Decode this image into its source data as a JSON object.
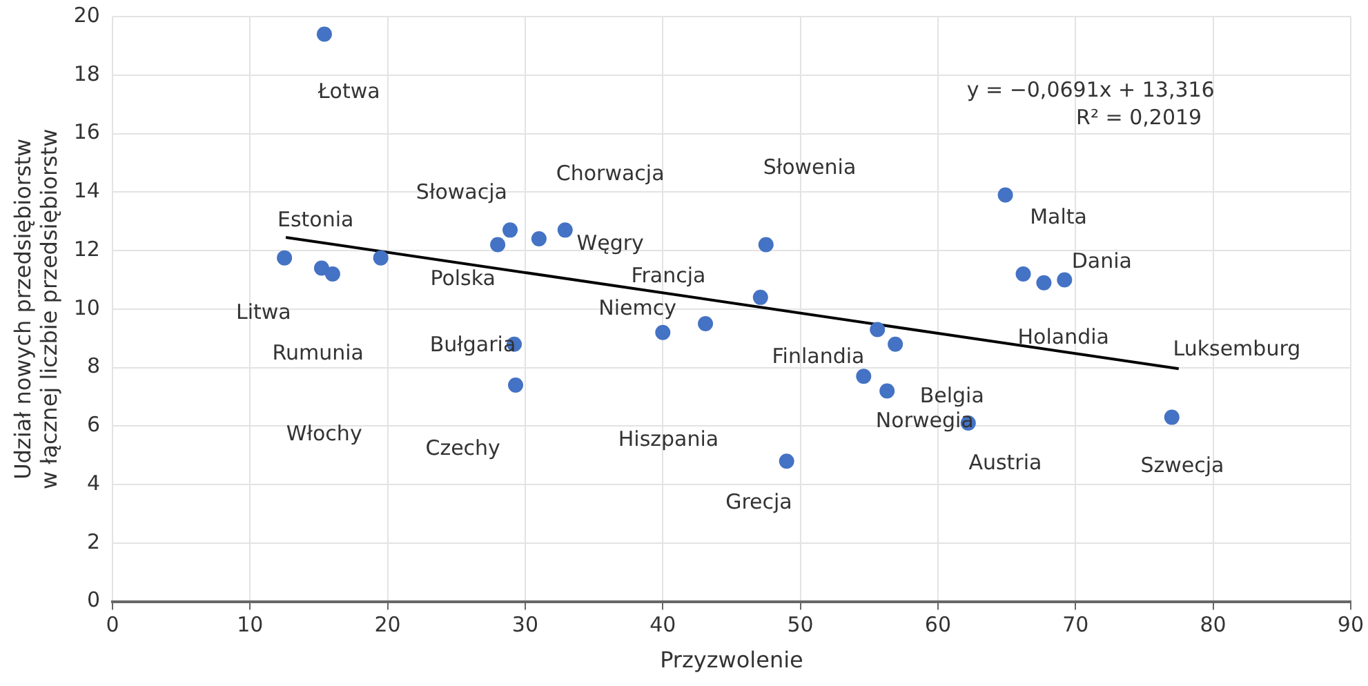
{
  "chart_data": {
    "type": "scatter",
    "xlabel": "Przyzwolenie",
    "ylabel": "Udział nowych przedsiębiorstw\nw łącznej liczbie przedsiębiorstw",
    "xlim": [
      0,
      90
    ],
    "xticks": [
      0,
      10,
      20,
      30,
      40,
      50,
      60,
      70,
      80,
      90
    ],
    "ylim": [
      0,
      20
    ],
    "yticks": [
      0,
      2,
      4,
      6,
      8,
      10,
      12,
      14,
      16,
      18,
      20
    ],
    "grid": true,
    "legend": false,
    "marker": "circle",
    "series": [
      {
        "color": "#4472c4",
        "x": [
          15.4,
          12.5,
          15.2,
          16.0,
          19.5,
          28.0,
          28.9,
          31.0,
          32.9,
          29.2,
          29.3,
          40.0,
          43.1,
          47.5,
          47.1,
          49.0,
          55.6,
          56.9,
          54.6,
          56.3,
          62.2,
          64.9,
          66.2,
          67.7,
          69.2,
          77.0
        ],
        "values": [
          19.4,
          11.75,
          11.4,
          11.2,
          11.75,
          12.2,
          12.7,
          12.4,
          12.7,
          8.8,
          7.4,
          9.2,
          9.5,
          12.2,
          10.4,
          4.8,
          9.3,
          8.8,
          7.7,
          7.2,
          6.1,
          13.9,
          11.2,
          10.9,
          11.0,
          6.3
        ]
      },
      {
        "type": "line",
        "color": "#000000",
        "x": [
          12.6,
          77.5
        ],
        "values": [
          12.45,
          7.96
        ],
        "line_style": "solid",
        "marker": "none"
      }
    ],
    "annotations": [
      "Łotwa",
      "Estonia",
      "Litwa",
      "Rumunia",
      "Włochy",
      "Słowacja",
      "Polska",
      "Bułgaria",
      "Czechy",
      "Chorwacja",
      "Węgry",
      "Francja",
      "Niemcy",
      "Słowenia",
      "Finlandia",
      "Hiszpania",
      "Grecja",
      "Belgia",
      "Norwegia",
      "Austria",
      "Malta",
      "Dania",
      "Holandia",
      "Luksemburg",
      "Szwecja",
      "y = −0,0691x + 13,316",
      "R² = 0,2019"
    ]
  }
}
